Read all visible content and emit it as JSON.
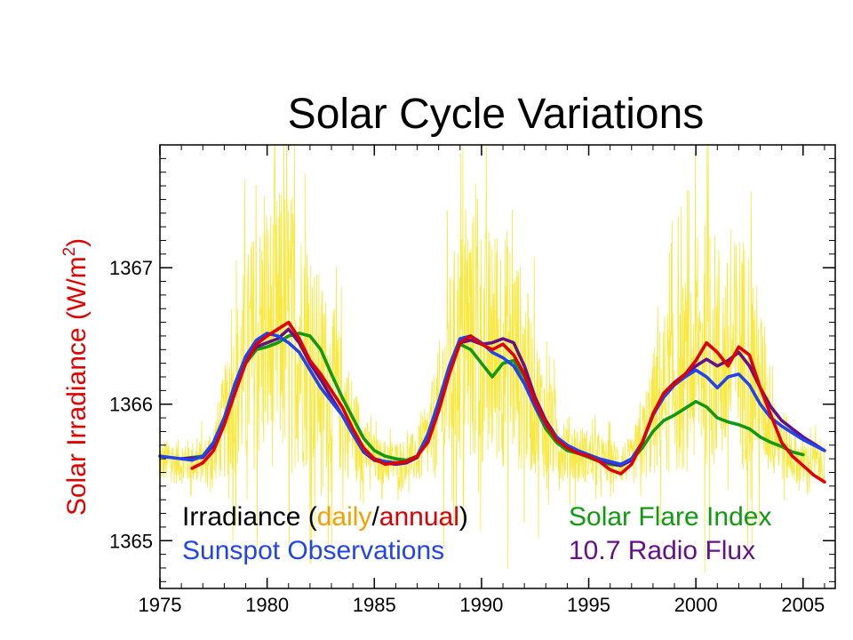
{
  "chart_data": {
    "type": "line",
    "title": "Solar Cycle Variations",
    "xlabel": "",
    "ylabel": {
      "prefix": "Solar Irradiance (W/m",
      "sup": "2",
      "suffix": ")"
    },
    "xlim": [
      1975,
      2006.5
    ],
    "ylim": [
      1364.65,
      1367.9
    ],
    "x_ticks": [
      1975,
      1980,
      1985,
      1990,
      1995,
      2000,
      2005
    ],
    "y_ticks": [
      1365,
      1366,
      1367
    ],
    "grid": false,
    "legend": {
      "placement": "bottom",
      "irradiance": {
        "prefix": "Irradiance (",
        "daily": "daily",
        "slash": "/",
        "annual": "annual",
        "suffix": ")"
      },
      "sunspot": "Sunspot Observations",
      "flare": "Solar Flare Index",
      "radio": "10.7 Radio Flux"
    },
    "colors": {
      "daily": "#f5e000",
      "annual": "#e00000",
      "sunspot": "#2244ee",
      "flare": "#119911",
      "radio": "#661188",
      "legend_irradiance": "#000000",
      "legend_daily": "#f5a000",
      "legend_annual": "#dd0000"
    },
    "series": [
      {
        "name": "Irradiance (annual)",
        "key": "annual",
        "x": [
          1976.5,
          1977,
          1977.5,
          1978,
          1978.5,
          1979,
          1979.5,
          1980,
          1980.5,
          1981,
          1981.5,
          1982,
          1982.5,
          1983,
          1983.5,
          1984,
          1984.5,
          1985,
          1985.5,
          1986,
          1986.5,
          1987,
          1987.5,
          1988,
          1988.5,
          1989,
          1989.5,
          1990,
          1990.5,
          1991,
          1991.5,
          1992,
          1992.5,
          1993,
          1993.5,
          1994,
          1994.5,
          1995,
          1995.5,
          1996,
          1996.5,
          1997,
          1997.5,
          1998,
          1998.5,
          1999,
          1999.5,
          2000,
          2000.5,
          2001,
          2001.5,
          2002,
          2002.5,
          2003,
          2003.5,
          2004,
          2004.5,
          2005,
          2005.5,
          2006
        ],
        "values": [
          1365.53,
          1365.57,
          1365.66,
          1365.85,
          1366.08,
          1366.3,
          1366.44,
          1366.5,
          1366.55,
          1366.6,
          1366.48,
          1366.32,
          1366.22,
          1366.1,
          1365.98,
          1365.82,
          1365.68,
          1365.6,
          1365.56,
          1365.57,
          1365.58,
          1365.62,
          1365.72,
          1365.95,
          1366.22,
          1366.45,
          1366.5,
          1366.44,
          1366.4,
          1366.44,
          1366.36,
          1366.22,
          1366.02,
          1365.86,
          1365.74,
          1365.68,
          1365.64,
          1365.62,
          1365.58,
          1365.52,
          1365.49,
          1365.56,
          1365.72,
          1365.93,
          1366.08,
          1366.15,
          1366.22,
          1366.32,
          1366.45,
          1366.38,
          1366.28,
          1366.42,
          1366.36,
          1366.12,
          1365.92,
          1365.72,
          1365.62,
          1365.55,
          1365.48,
          1365.43
        ]
      },
      {
        "name": "Sunspot Observations",
        "key": "sunspot",
        "x": [
          1975,
          1976,
          1976.5,
          1977,
          1977.5,
          1978,
          1978.5,
          1979,
          1979.5,
          1980,
          1980.5,
          1981,
          1981.5,
          1982,
          1982.5,
          1983,
          1983.5,
          1984,
          1984.5,
          1985,
          1985.5,
          1986,
          1986.5,
          1987,
          1987.5,
          1988,
          1988.5,
          1989,
          1989.5,
          1990,
          1990.5,
          1991,
          1991.5,
          1992,
          1992.5,
          1993,
          1993.5,
          1994,
          1994.5,
          1995,
          1995.5,
          1996,
          1996.5,
          1997,
          1997.5,
          1998,
          1998.5,
          1999,
          1999.5,
          2000,
          2000.5,
          2001,
          2001.5,
          2002,
          2002.5,
          2003,
          2003.5,
          2004,
          2004.5,
          2005,
          2005.5,
          2006
        ],
        "values": [
          1365.62,
          1365.6,
          1365.59,
          1365.62,
          1365.72,
          1365.9,
          1366.15,
          1366.35,
          1366.47,
          1366.52,
          1366.5,
          1366.45,
          1366.38,
          1366.25,
          1366.12,
          1366.02,
          1365.92,
          1365.78,
          1365.66,
          1365.6,
          1365.58,
          1365.57,
          1365.58,
          1365.62,
          1365.78,
          1366.02,
          1366.28,
          1366.48,
          1366.5,
          1366.45,
          1366.38,
          1366.34,
          1366.28,
          1366.15,
          1365.98,
          1365.85,
          1365.76,
          1365.7,
          1365.66,
          1365.63,
          1365.6,
          1365.58,
          1365.56,
          1365.6,
          1365.72,
          1365.92,
          1366.05,
          1366.14,
          1366.2,
          1366.25,
          1366.2,
          1366.12,
          1366.2,
          1366.22,
          1366.14,
          1366.0,
          1365.9,
          1365.84,
          1365.79,
          1365.74,
          1365.7,
          1365.66
        ]
      },
      {
        "name": "Solar Flare Index",
        "key": "flare",
        "x": [
          1976,
          1977,
          1977.5,
          1978,
          1978.5,
          1979,
          1979.5,
          1980,
          1980.5,
          1981,
          1981.5,
          1982,
          1982.5,
          1983,
          1983.5,
          1984,
          1984.5,
          1985,
          1985.5,
          1986,
          1986.5,
          1987,
          1987.5,
          1988,
          1988.5,
          1989,
          1989.5,
          1990,
          1990.5,
          1991,
          1991.5,
          1992,
          1992.5,
          1993,
          1993.5,
          1994,
          1994.5,
          1995,
          1995.5,
          1996,
          1996.5,
          1997,
          1997.5,
          1998,
          1998.5,
          1999,
          1999.5,
          2000,
          2000.5,
          2001,
          2001.5,
          2002,
          2002.5,
          2003,
          2003.5,
          2004,
          2004.5,
          2005
        ],
        "values": [
          1365.6,
          1365.62,
          1365.72,
          1365.9,
          1366.12,
          1366.3,
          1366.4,
          1366.42,
          1366.45,
          1366.5,
          1366.52,
          1366.5,
          1366.4,
          1366.22,
          1366.05,
          1365.9,
          1365.75,
          1365.66,
          1365.62,
          1365.6,
          1365.59,
          1365.62,
          1365.75,
          1365.98,
          1366.25,
          1366.44,
          1366.4,
          1366.3,
          1366.2,
          1366.3,
          1366.32,
          1366.2,
          1365.98,
          1365.82,
          1365.72,
          1365.66,
          1365.64,
          1365.61,
          1365.58,
          1365.56,
          1365.55,
          1365.59,
          1365.68,
          1365.8,
          1365.88,
          1365.92,
          1365.97,
          1366.02,
          1365.98,
          1365.9,
          1365.87,
          1365.85,
          1365.82,
          1365.76,
          1365.72,
          1365.69,
          1365.65,
          1365.63
        ]
      },
      {
        "name": "10.7 Radio Flux",
        "key": "radio",
        "x": [
          1976,
          1977,
          1977.5,
          1978,
          1978.5,
          1979,
          1979.5,
          1980,
          1980.5,
          1981,
          1981.5,
          1982,
          1982.5,
          1983,
          1983.5,
          1984,
          1984.5,
          1985,
          1985.5,
          1986,
          1986.5,
          1987,
          1987.5,
          1988,
          1988.5,
          1989,
          1989.5,
          1990,
          1990.5,
          1991,
          1991.5,
          1992,
          1992.5,
          1993,
          1993.5,
          1994,
          1994.5,
          1995,
          1995.5,
          1996,
          1996.5,
          1997,
          1997.5,
          1998,
          1998.5,
          1999,
          1999.5,
          2000,
          2000.5,
          2001,
          2001.5,
          2002,
          2002.5,
          2003,
          2003.5,
          2004,
          2004.5,
          2005,
          2005.5,
          2006
        ],
        "values": [
          1365.6,
          1365.61,
          1365.7,
          1365.88,
          1366.12,
          1366.32,
          1366.42,
          1366.45,
          1366.48,
          1366.55,
          1366.45,
          1366.3,
          1366.18,
          1366.05,
          1365.92,
          1365.78,
          1365.65,
          1365.59,
          1365.57,
          1365.56,
          1365.57,
          1365.61,
          1365.76,
          1366.0,
          1366.25,
          1366.45,
          1366.47,
          1366.44,
          1366.45,
          1366.48,
          1366.45,
          1366.28,
          1366.05,
          1365.88,
          1365.76,
          1365.69,
          1365.65,
          1365.62,
          1365.59,
          1365.57,
          1365.55,
          1365.59,
          1365.72,
          1365.92,
          1366.08,
          1366.16,
          1366.22,
          1366.28,
          1366.33,
          1366.28,
          1366.32,
          1366.38,
          1366.28,
          1366.12,
          1365.98,
          1365.88,
          1365.82,
          1365.76,
          1365.71,
          1365.66
        ]
      }
    ]
  }
}
